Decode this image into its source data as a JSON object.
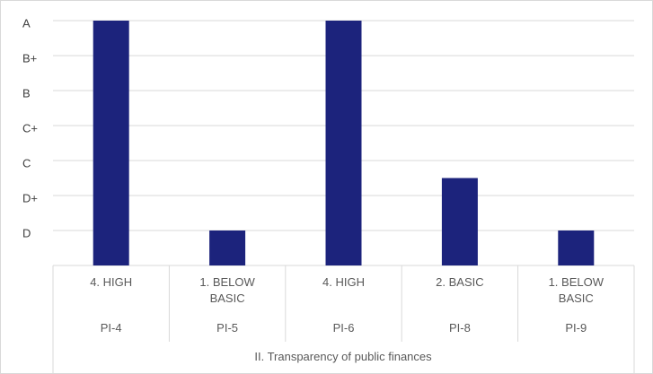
{
  "chart_data": {
    "type": "bar",
    "group_label": "II. Transparency of public finances",
    "categories": [
      "PI-4",
      "PI-5",
      "PI-6",
      "PI-8",
      "PI-9"
    ],
    "score_labels": [
      "4. HIGH",
      "1. BELOW BASIC",
      "4. HIGH",
      "2. BASIC",
      "1. BELOW BASIC"
    ],
    "values": [
      7,
      1,
      7,
      2.5,
      1
    ],
    "color": "#1c237c",
    "ylim": [
      0,
      7
    ],
    "yticks": [
      {
        "value": 1,
        "label": "D"
      },
      {
        "value": 2,
        "label": "D+"
      },
      {
        "value": 3,
        "label": "C"
      },
      {
        "value": 4,
        "label": "C+"
      },
      {
        "value": 5,
        "label": "B"
      },
      {
        "value": 6,
        "label": "B+"
      },
      {
        "value": 7,
        "label": "A"
      }
    ],
    "grid": true
  }
}
